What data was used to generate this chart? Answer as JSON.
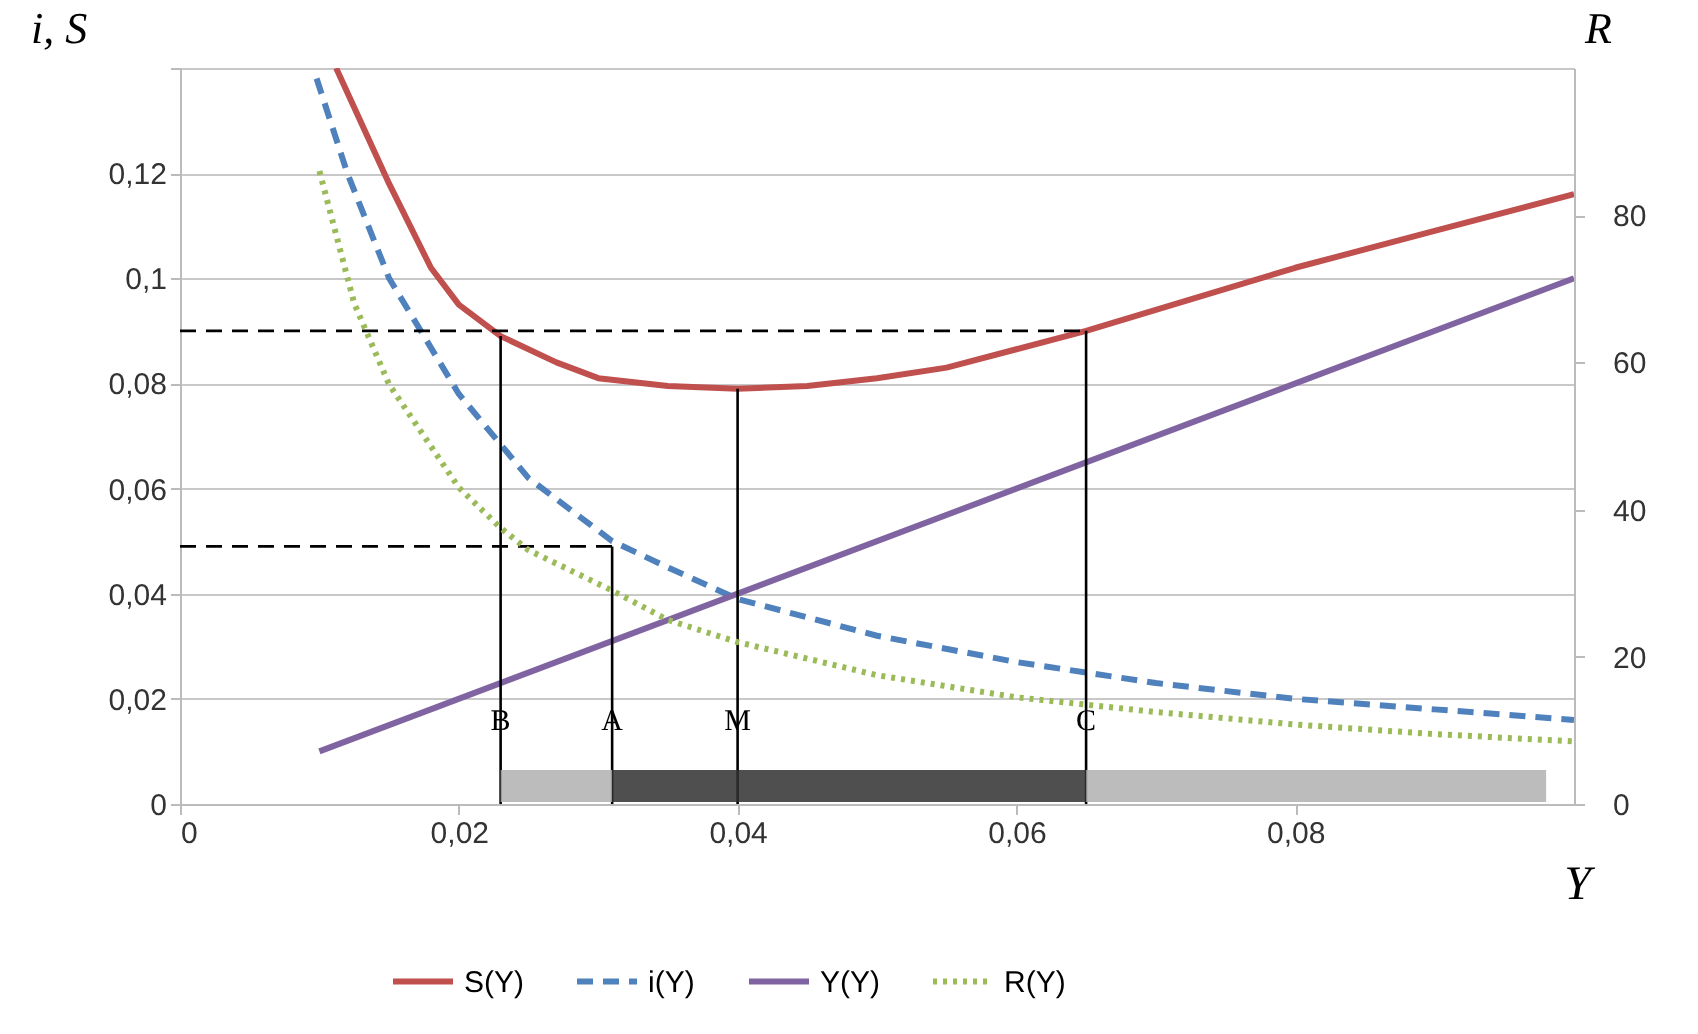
{
  "chart_data": {
    "type": "line",
    "xlabel": "Y",
    "ylabel": "i, S",
    "y2label": "R",
    "xlim": [
      0,
      0.1
    ],
    "xticks": [
      0,
      {
        "value": 0.02,
        "label": "0,02"
      },
      {
        "value": 0.04,
        "label": "0,04"
      },
      {
        "value": 0.06,
        "label": "0,06"
      },
      {
        "value": 0.08,
        "label": "0,08"
      }
    ],
    "ylim": [
      0,
      0.14
    ],
    "yticks": [
      0,
      {
        "value": 0.02,
        "label": "0,02"
      },
      {
        "value": 0.04,
        "label": "0,04"
      },
      {
        "value": 0.06,
        "label": "0,06"
      },
      {
        "value": 0.08,
        "label": "0,08"
      },
      {
        "value": 0.1,
        "label": "0,1"
      },
      {
        "value": 0.12,
        "label": "0,12"
      },
      {
        "value": 0.14,
        "label": null
      }
    ],
    "y2lim": [
      0,
      100
    ],
    "y2ticks": [
      0,
      20,
      40,
      60,
      80
    ],
    "grid": "y",
    "legend": "bottom",
    "series": [
      {
        "name": "S(Y)",
        "color": "#c0504d",
        "line_style": "solid",
        "x": [
          0.0112,
          0.015,
          0.018,
          0.02,
          0.023,
          0.027,
          0.03,
          0.035,
          0.04,
          0.045,
          0.05,
          0.055,
          0.06,
          0.065,
          0.07,
          0.08,
          0.09,
          0.1
        ],
        "values": [
          0.14,
          0.118,
          0.102,
          0.095,
          0.089,
          0.084,
          0.081,
          0.0795,
          0.079,
          0.0795,
          0.081,
          0.083,
          0.0865,
          0.09,
          0.094,
          0.102,
          0.109,
          0.116
        ]
      },
      {
        "name": "i(Y)",
        "color": "#4f81bd",
        "line_style": "dashed",
        "x": [
          0.0098,
          0.012,
          0.015,
          0.02,
          0.025,
          0.031,
          0.035,
          0.04,
          0.05,
          0.06,
          0.065,
          0.07,
          0.08,
          0.09,
          0.1
        ],
        "values": [
          0.138,
          0.12,
          0.1,
          0.078,
          0.062,
          0.05,
          0.045,
          0.039,
          0.032,
          0.027,
          0.025,
          0.023,
          0.02,
          0.018,
          0.016
        ]
      },
      {
        "name": "Y(Y)",
        "color": "#8064a2",
        "line_style": "solid",
        "x": [
          0.01,
          0.1
        ],
        "values": [
          0.01,
          0.1
        ]
      },
      {
        "name": "R(Y)",
        "color": "#9bbb59",
        "line_style": "dotted",
        "axis": "y2",
        "x": [
          0.01,
          0.0125,
          0.015,
          0.02,
          0.023,
          0.025,
          0.031,
          0.035,
          0.04,
          0.05,
          0.06,
          0.065,
          0.07,
          0.08,
          0.09,
          0.1
        ],
        "values": [
          86,
          68,
          57,
          43,
          37.5,
          34.5,
          29,
          25,
          22,
          17.5,
          14.5,
          13.5,
          12.5,
          10.8,
          9.5,
          8.5
        ]
      },
      {
        "type": "line",
        "color": "#000000",
        "line_style": "dashed",
        "x": [
          0,
          0.065
        ],
        "values": [
          0.09,
          0.09
        ]
      },
      {
        "type": "line",
        "color": "#000000",
        "line_style": "dashed",
        "x": [
          0,
          0.031
        ],
        "values": [
          0.049,
          0.049
        ]
      },
      {
        "type": "line",
        "color": "#000000",
        "line_style": "solid",
        "x": [
          0.023,
          0.023
        ],
        "values": [
          0,
          0.089
        ]
      },
      {
        "type": "line",
        "color": "#000000",
        "line_style": "solid",
        "x": [
          0.031,
          0.031
        ],
        "values": [
          0,
          0.049
        ]
      },
      {
        "type": "line",
        "color": "#000000",
        "line_style": "solid",
        "x": [
          0.04,
          0.04
        ],
        "values": [
          0,
          0.079
        ]
      },
      {
        "type": "line",
        "color": "#000000",
        "line_style": "solid",
        "x": [
          0.065,
          0.065
        ],
        "values": [
          0,
          0.09
        ]
      }
    ],
    "bands": [
      {
        "axis": "x",
        "from": 0.023,
        "to": 0.031,
        "color": "#b0b0b0"
      },
      {
        "axis": "x",
        "from": 0.031,
        "to": 0.065,
        "color": "#303030"
      },
      {
        "axis": "x",
        "from": 0.065,
        "to": 0.098,
        "color": "#b0b0b0"
      }
    ],
    "annotations": [
      {
        "text": "B",
        "x": 0.023,
        "y": 0.016
      },
      {
        "text": "A",
        "x": 0.031,
        "y": 0.016
      },
      {
        "text": "M",
        "x": 0.04,
        "y": 0.016
      },
      {
        "text": "C",
        "x": 0.065,
        "y": 0.016
      }
    ]
  }
}
